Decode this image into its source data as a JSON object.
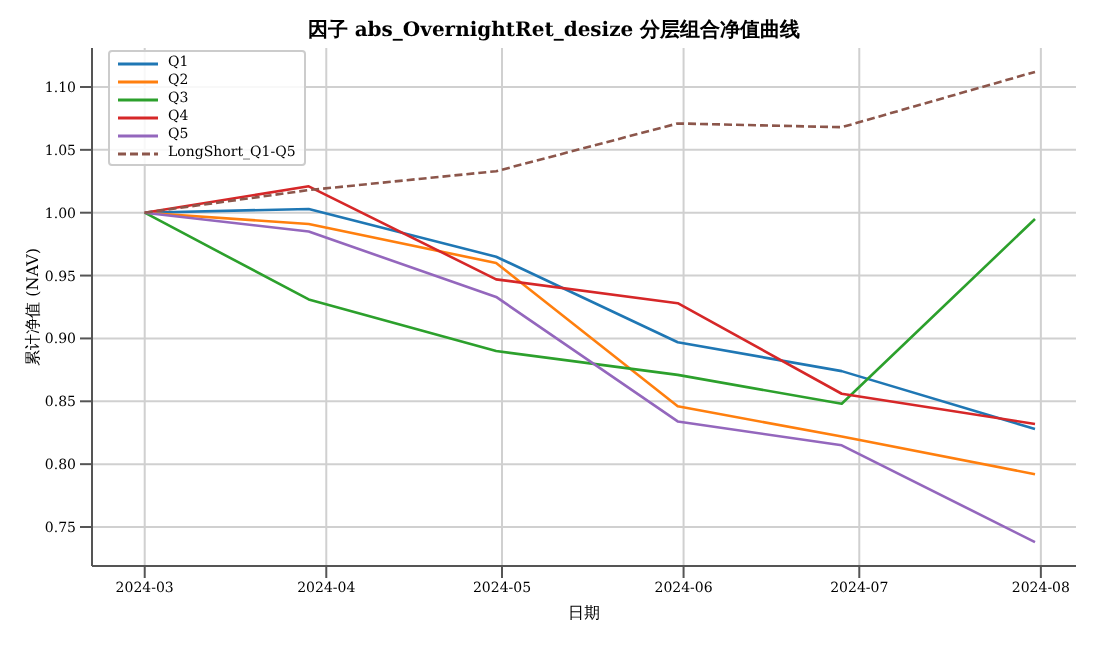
{
  "chart_data": {
    "type": "line",
    "title": "因子 abs_OvernightRet_desize 分层组合净值曲线",
    "xlabel": "日期",
    "ylabel": "累计净值 (NAV)",
    "x": [
      "2024-03-01",
      "2024-03-29",
      "2024-04-30",
      "2024-05-31",
      "2024-06-28",
      "2024-07-31"
    ],
    "series": [
      {
        "name": "Q1",
        "color": "#1f77b4",
        "values": [
          1.0,
          1.003,
          0.965,
          0.897,
          0.874,
          0.828
        ]
      },
      {
        "name": "Q2",
        "color": "#ff7f0e",
        "values": [
          1.0,
          0.991,
          0.96,
          0.846,
          0.822,
          0.792
        ]
      },
      {
        "name": "Q3",
        "color": "#2ca02c",
        "values": [
          1.0,
          0.931,
          0.89,
          0.871,
          0.848,
          0.995
        ]
      },
      {
        "name": "Q4",
        "color": "#d62728",
        "values": [
          1.0,
          1.021,
          0.947,
          0.928,
          0.856,
          0.832
        ]
      },
      {
        "name": "Q5",
        "color": "#9467bd",
        "values": [
          1.0,
          0.985,
          0.933,
          0.834,
          0.815,
          0.738
        ]
      },
      {
        "name": "LongShort_Q1-Q5",
        "color": "#8c564b",
        "line_style": "dashed",
        "values": [
          1.0,
          1.018,
          1.033,
          1.071,
          1.068,
          1.112
        ]
      }
    ],
    "xlim": [
      "2024-02-21",
      "2024-08-07"
    ],
    "xticks": [
      "2024-03",
      "2024-04",
      "2024-05",
      "2024-06",
      "2024-07",
      "2024-08"
    ],
    "ylim": [
      0.719,
      1.131
    ],
    "yticks": [
      {
        "value": 0.75,
        "label": "0.75"
      },
      {
        "value": 0.8,
        "label": "0.80"
      },
      {
        "value": 0.85,
        "label": "0.85"
      },
      {
        "value": 0.9,
        "label": "0.90"
      },
      {
        "value": 0.95,
        "label": "0.95"
      },
      {
        "value": 1.0,
        "label": "1.00"
      },
      {
        "value": 1.05,
        "label": "1.05"
      },
      {
        "value": 1.1,
        "label": "1.10"
      }
    ],
    "grid": true,
    "legend": "top left",
    "marker": "none",
    "line_style": "solid"
  }
}
